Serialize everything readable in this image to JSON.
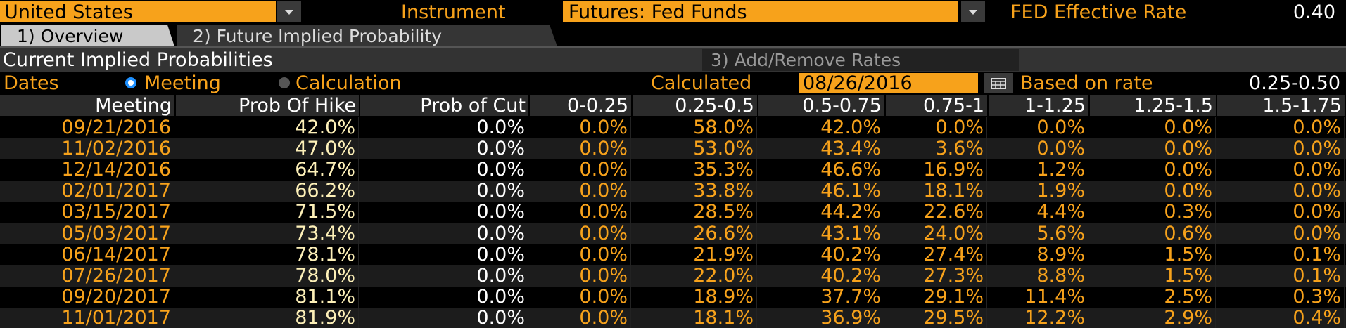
{
  "header": {
    "country": "United States",
    "instrument_label": "Instrument",
    "instrument": "Futures: Fed Funds",
    "rate_label": "FED Effective Rate",
    "rate": "0.40"
  },
  "tabs": [
    "1) Overview",
    "2) Future Implied Probability"
  ],
  "section": {
    "title": "Current Implied Probabilities",
    "button": "3) Add/Remove Rates"
  },
  "options": {
    "dates_label": "Dates",
    "meeting": "Meeting",
    "calculation": "Calculation",
    "calculated_label": "Calculated",
    "calculated_date": "08/26/2016",
    "based_label": "Based on rate",
    "based_rate": "0.25-0.50"
  },
  "table": {
    "columns": [
      "Meeting",
      "Prob Of Hike",
      "Prob of Cut",
      "0-0.25",
      "0.25-0.5",
      "0.5-0.75",
      "0.75-1",
      "1-1.25",
      "1.25-1.5",
      "1.5-1.75"
    ],
    "rows": [
      [
        "09/21/2016",
        "42.0%",
        "0.0%",
        "0.0%",
        "58.0%",
        "42.0%",
        "0.0%",
        "0.0%",
        "0.0%",
        "0.0%"
      ],
      [
        "11/02/2016",
        "47.0%",
        "0.0%",
        "0.0%",
        "53.0%",
        "43.4%",
        "3.6%",
        "0.0%",
        "0.0%",
        "0.0%"
      ],
      [
        "12/14/2016",
        "64.7%",
        "0.0%",
        "0.0%",
        "35.3%",
        "46.6%",
        "16.9%",
        "1.2%",
        "0.0%",
        "0.0%"
      ],
      [
        "02/01/2017",
        "66.2%",
        "0.0%",
        "0.0%",
        "33.8%",
        "46.1%",
        "18.1%",
        "1.9%",
        "0.0%",
        "0.0%"
      ],
      [
        "03/15/2017",
        "71.5%",
        "0.0%",
        "0.0%",
        "28.5%",
        "44.2%",
        "22.6%",
        "4.4%",
        "0.3%",
        "0.0%"
      ],
      [
        "05/03/2017",
        "73.4%",
        "0.0%",
        "0.0%",
        "26.6%",
        "43.1%",
        "24.0%",
        "5.6%",
        "0.6%",
        "0.0%"
      ],
      [
        "06/14/2017",
        "78.1%",
        "0.0%",
        "0.0%",
        "21.9%",
        "40.2%",
        "27.4%",
        "8.9%",
        "1.5%",
        "0.1%"
      ],
      [
        "07/26/2017",
        "78.0%",
        "0.0%",
        "0.0%",
        "22.0%",
        "40.2%",
        "27.3%",
        "8.8%",
        "1.5%",
        "0.1%"
      ],
      [
        "09/20/2017",
        "81.1%",
        "0.0%",
        "0.0%",
        "18.9%",
        "37.7%",
        "29.1%",
        "11.4%",
        "2.5%",
        "0.3%"
      ],
      [
        "11/01/2017",
        "81.9%",
        "0.0%",
        "0.0%",
        "18.1%",
        "36.9%",
        "29.5%",
        "12.2%",
        "2.9%",
        "0.4%"
      ]
    ]
  }
}
